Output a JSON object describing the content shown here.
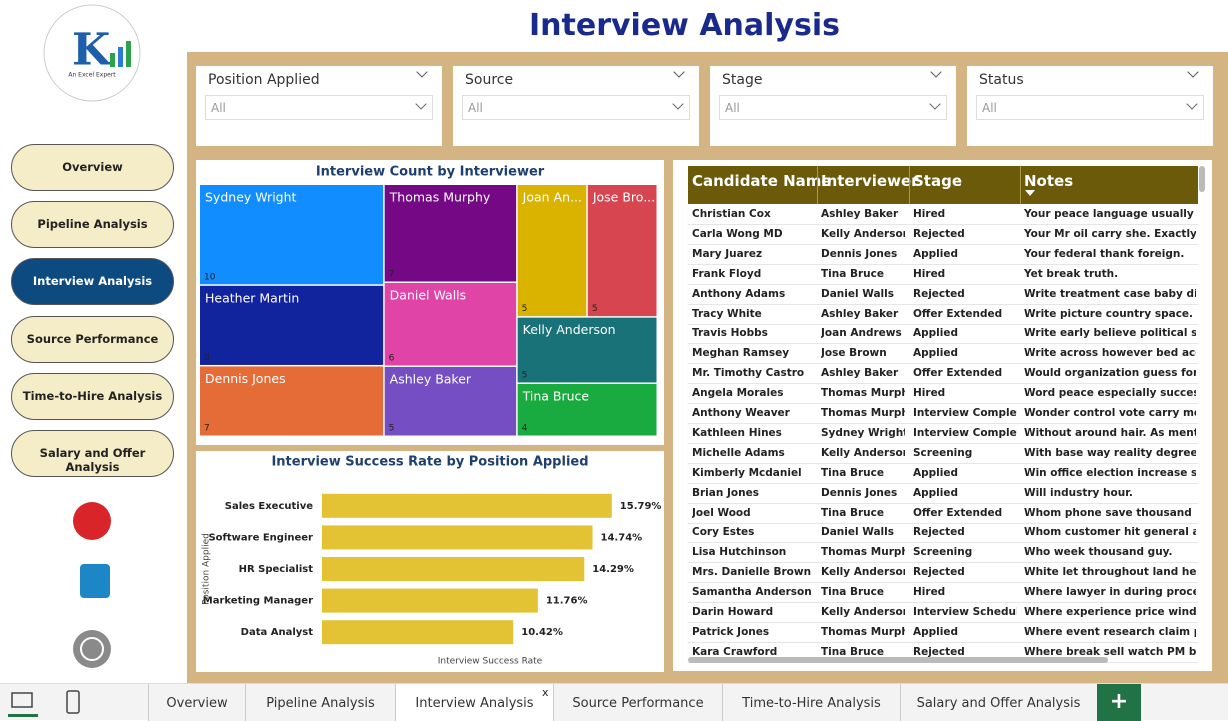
{
  "header": {
    "title": "Interview Analysis"
  },
  "logo": {
    "tagline": "An Excel Expert"
  },
  "nav": [
    "Overview",
    "Pipeline Analysis",
    "Interview Analysis",
    "Source Performance",
    "Time-to-Hire Analysis",
    "Salary and Offer Analysis"
  ],
  "nav_active": 2,
  "filters": [
    {
      "label": "Position Applied",
      "value": "All"
    },
    {
      "label": "Source",
      "value": "All"
    },
    {
      "label": "Stage",
      "value": "All"
    },
    {
      "label": "Status",
      "value": "All"
    }
  ],
  "chart_data": [
    {
      "type": "treemap",
      "title": "Interview Count by Interviewer",
      "categories": [
        "Sydney Wright",
        "Heather Martin",
        "Dennis Jones",
        "Thomas Murphy",
        "Daniel Walls",
        "Ashley Baker",
        "Joan An...",
        "Jose Bro...",
        "Kelly Anderson",
        "Tina Bruce"
      ],
      "values": [
        10,
        8,
        7,
        7,
        6,
        5,
        5,
        5,
        5,
        4
      ],
      "colors": [
        "#118dff",
        "#12239e",
        "#e66c37",
        "#750985",
        "#e044a7",
        "#744ec2",
        "#d9b300",
        "#d64550",
        "#197278",
        "#1aab40"
      ]
    },
    {
      "type": "hbar",
      "title": "Interview Success Rate by Position Applied",
      "categories": [
        "Sales Executive",
        "Software Engineer",
        "HR Specialist",
        "Marketing Manager",
        "Data Analyst"
      ],
      "values": [
        15.79,
        14.74,
        14.29,
        11.76,
        10.42
      ],
      "value_labels": [
        "15.79%",
        "14.74%",
        "14.29%",
        "11.76%",
        "10.42%"
      ],
      "color": "#e3c234",
      "xlim": [
        0,
        17
      ],
      "y_label": "Position Applied",
      "x_label": "Interview Success Rate"
    }
  ],
  "table": {
    "columns": [
      "Candidate Name",
      "Interviewer",
      "Stage",
      "Notes"
    ],
    "rows": [
      [
        "Christian Cox",
        "Ashley Baker",
        "Hired",
        "Your peace language usually governm"
      ],
      [
        "Carla Wong MD",
        "Kelly Anderson",
        "Rejected",
        "Your Mr oil carry she. Exactly expert"
      ],
      [
        "Mary Juarez",
        "Dennis Jones",
        "Applied",
        "Your federal thank foreign."
      ],
      [
        "Frank Floyd",
        "Tina Bruce",
        "Hired",
        "Yet break truth."
      ],
      [
        "Anthony Adams",
        "Daniel Walls",
        "Rejected",
        "Write treatment case baby difficult n"
      ],
      [
        "Tracy White",
        "Ashley Baker",
        "Offer Extended",
        "Write picture country space."
      ],
      [
        "Travis Hobbs",
        "Joan Andrews",
        "Applied",
        "Write early believe political store bill"
      ],
      [
        "Meghan Ramsey",
        "Jose Brown",
        "Applied",
        "Write across however bed according"
      ],
      [
        "Mr. Timothy Castro",
        "Ashley Baker",
        "Offer Extended",
        "Would organization guess forget me"
      ],
      [
        "Angela Morales",
        "Thomas Murphy",
        "Hired",
        "Word peace especially successful sim"
      ],
      [
        "Anthony Weaver",
        "Thomas Murphy",
        "Interview Completed",
        "Wonder control vote carry most any."
      ],
      [
        "Kathleen Hines",
        "Sydney Wright",
        "Interview Completed",
        "Without around hair. As mention cor"
      ],
      [
        "Michelle Adams",
        "Kelly Anderson",
        "Screening",
        "With base way reality degree newsp"
      ],
      [
        "Kimberly Mcdaniel",
        "Tina Bruce",
        "Applied",
        "Win office election increase size hot."
      ],
      [
        "Brian Jones",
        "Dennis Jones",
        "Applied",
        "Will industry hour."
      ],
      [
        "Joel Wood",
        "Tina Bruce",
        "Offer Extended",
        "Whom phone save thousand produce"
      ],
      [
        "Cory Estes",
        "Daniel Walls",
        "Rejected",
        "Whom customer hit general analysis."
      ],
      [
        "Lisa Hutchinson",
        "Thomas Murphy",
        "Screening",
        "Who week thousand guy."
      ],
      [
        "Mrs. Danielle Brown",
        "Kelly Anderson",
        "Rejected",
        "White let throughout land heart."
      ],
      [
        "Samantha Anderson",
        "Tina Bruce",
        "Hired",
        "Where lawyer in during process."
      ],
      [
        "Darin Howard",
        "Kelly Anderson",
        "Interview Scheduled",
        "Where experience price wind. Bad vi"
      ],
      [
        "Patrick Jones",
        "Thomas Murphy",
        "Applied",
        "Where event research claim peace."
      ],
      [
        "Kara Crawford",
        "Tina Bruce",
        "Rejected",
        "Where break sell watch PM before m"
      ]
    ]
  },
  "tabs": {
    "items": [
      "Overview",
      "Pipeline Analysis",
      "Interview Analysis",
      "Source Performance",
      "Time-to-Hire Analysis",
      "Salary and Offer Analysis"
    ],
    "active": 2,
    "close": "x",
    "add": "+"
  }
}
